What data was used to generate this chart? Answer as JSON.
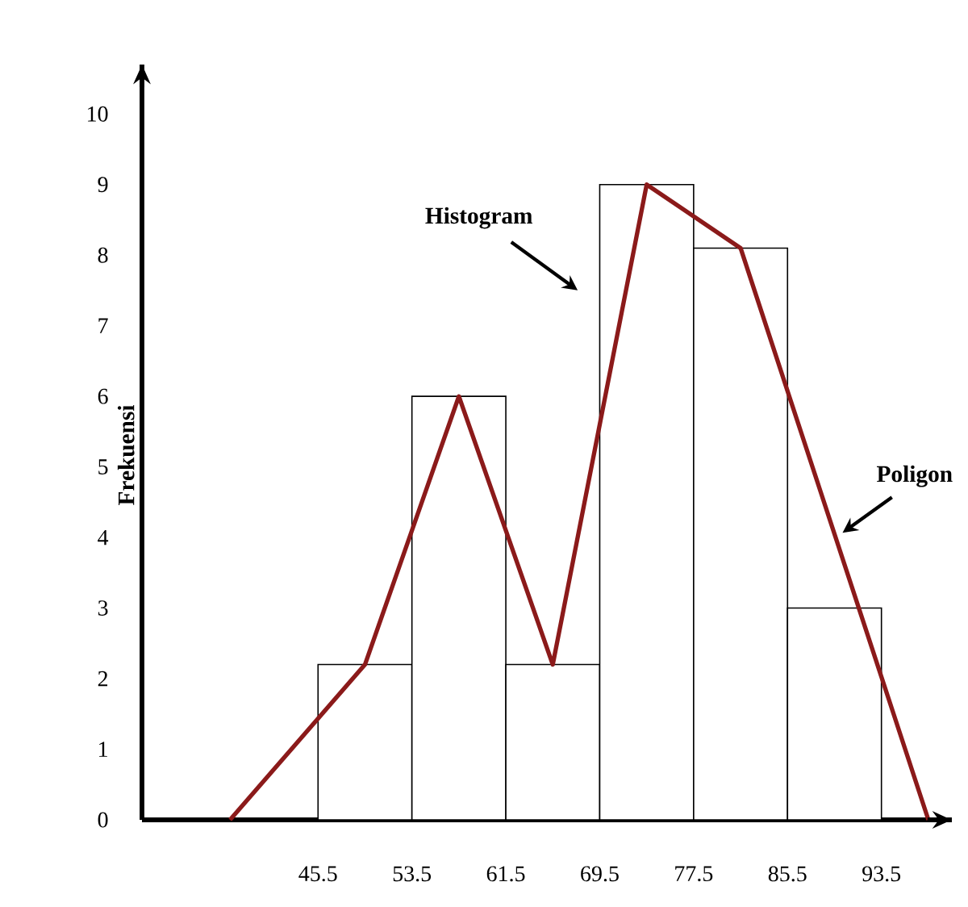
{
  "chart_data": {
    "type": "histogram",
    "ylabel": "Frekuensi",
    "bins": [
      45.5,
      53.5,
      61.5,
      69.5,
      77.5,
      85.5,
      93.5
    ],
    "values": [
      2.2,
      6,
      2.2,
      9,
      8.1,
      3
    ],
    "color": "#ffffff",
    "series": [
      {
        "type": "line",
        "x": [
          38,
          49.5,
          57.5,
          65.5,
          73.5,
          81.5,
          97.5
        ],
        "values": [
          0,
          2.2,
          6,
          2.2,
          9,
          8.1,
          0
        ],
        "color": "#8b1a1a"
      }
    ],
    "annotations": [
      "Histogram",
      "Poligon"
    ],
    "xlim": [
      30.5,
      99.5
    ],
    "ylim": [
      0,
      10.7
    ],
    "xticks": [
      45.5,
      53.5,
      61.5,
      69.5,
      77.5,
      85.5,
      93.5
    ],
    "yticks": [
      0,
      1,
      2,
      3,
      4,
      5,
      6,
      7,
      8,
      9,
      10
    ]
  }
}
